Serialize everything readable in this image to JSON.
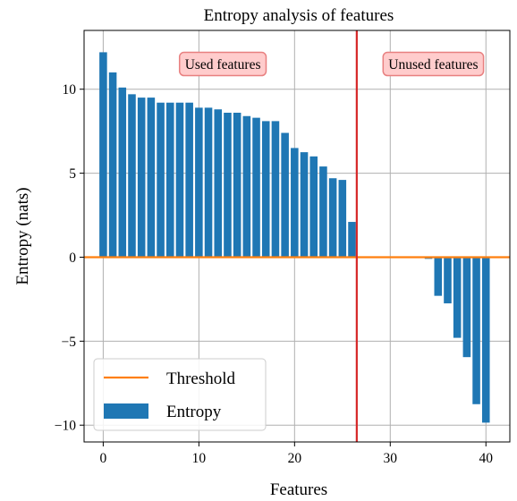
{
  "chart_data": {
    "type": "bar",
    "title": "Entropy analysis of features",
    "xlabel": "Features",
    "ylabel": "Entropy (nats)",
    "xlim": [
      -2,
      42.5
    ],
    "ylim": [
      -11,
      13.5
    ],
    "xticks": [
      0,
      10,
      20,
      30,
      40
    ],
    "yticks": [
      -10,
      -5,
      0,
      5,
      10
    ],
    "xtick_labels": [
      "0",
      "10",
      "20",
      "30",
      "40"
    ],
    "ytick_labels": [
      "−10",
      "−5",
      "0",
      "5",
      "10"
    ],
    "grid": true,
    "legend_position": "lower-left",
    "threshold": 0,
    "cutoff_x": 26.5,
    "colors": {
      "bars": "#1f77b4",
      "threshold": "#ff7f0e",
      "cutoff": "#d62728",
      "annotation_fill": "#ffcccc",
      "annotation_edge": "#e88080",
      "grid": "#b0b0b0"
    },
    "annotations": [
      {
        "text": "Used features",
        "x": 12.5,
        "y": 11.5
      },
      {
        "text": "Unused features",
        "x": 34.5,
        "y": 11.5
      }
    ],
    "series": [
      {
        "name": "Entropy",
        "x": [
          0,
          1,
          2,
          3,
          4,
          5,
          6,
          7,
          8,
          9,
          10,
          11,
          12,
          13,
          14,
          15,
          16,
          17,
          18,
          19,
          20,
          21,
          22,
          23,
          24,
          25,
          26,
          27,
          28,
          29,
          30,
          31,
          32,
          33,
          34,
          35,
          36,
          37,
          38,
          39,
          40
        ],
        "values": [
          12.2,
          11.0,
          10.1,
          9.7,
          9.5,
          9.5,
          9.2,
          9.2,
          9.2,
          9.2,
          8.9,
          8.9,
          8.8,
          8.6,
          8.6,
          8.4,
          8.3,
          8.1,
          8.1,
          7.4,
          6.5,
          6.25,
          6.0,
          5.4,
          4.7,
          4.6,
          2.1,
          0,
          0,
          0,
          0,
          0,
          0,
          0,
          -0.1,
          -2.3,
          -2.75,
          -4.8,
          -5.95,
          -8.75,
          -9.85
        ]
      }
    ],
    "legend": [
      {
        "label": "Threshold",
        "kind": "line"
      },
      {
        "label": "Entropy",
        "kind": "patch"
      }
    ]
  }
}
